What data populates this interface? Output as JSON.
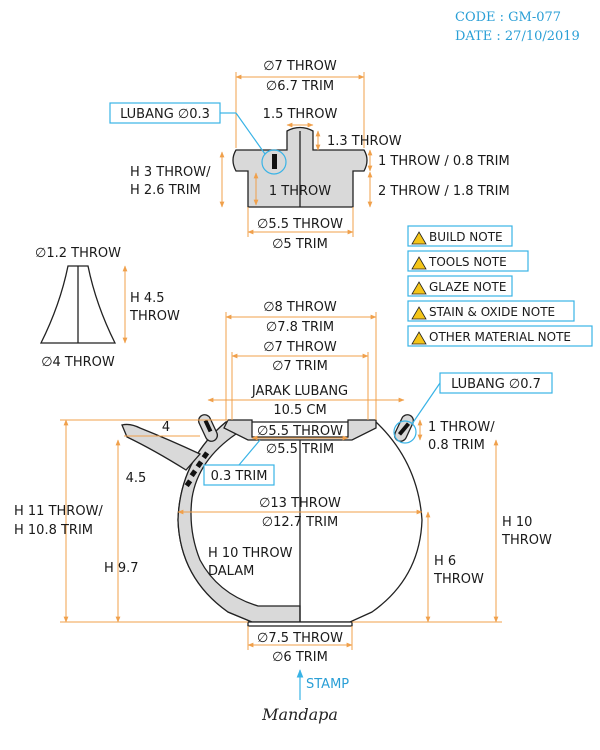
{
  "header": {
    "code": "CODE : GM-077",
    "date": "DATE : 27/10/2019"
  },
  "lid": {
    "dia_throw": "∅7 THROW",
    "dia_trim": "∅6.7 TRIM",
    "hole_label": "LUBANG ∅0.3",
    "knob_width": "1.5 THROW",
    "knob_height": "1.3 THROW",
    "height_1": "H 3 THROW/",
    "height_2": "H 2.6 TRIM",
    "flange": "1 THROW / 0.8 TRIM",
    "inner": "1 THROW",
    "wall": "2 THROW / 1.8 TRIM",
    "bottom_throw": "∅5.5 THROW",
    "bottom_trim": "∅5 TRIM"
  },
  "spout": {
    "top": "∅1.2 THROW",
    "height_1": "H 4.5",
    "height_2": "THROW",
    "bottom": "∅4 THROW"
  },
  "notes": [
    {
      "label": "BUILD NOTE",
      "icon": "warning-icon"
    },
    {
      "label": "TOOLS NOTE",
      "icon": "warning-icon"
    },
    {
      "label": "GLAZE NOTE",
      "icon": "warning-icon"
    },
    {
      "label": "STAIN & OXIDE NOTE",
      "icon": "warning-icon"
    },
    {
      "label": "OTHER MATERIAL NOTE",
      "icon": "warning-icon"
    }
  ],
  "pot": {
    "top_throw": "∅8 THROW",
    "top_trim": "∅7.8 TRIM",
    "gallery_throw": "∅7 THROW",
    "gallery_trim": "∅7 TRIM",
    "distance_1": "JARAK LUBANG",
    "distance_2": "10.5 CM",
    "hole_label": "LUBANG ∅0.7",
    "rim_1": "1 THROW/",
    "rim_2": "0.8 TRIM",
    "opening_throw": "∅5.5 THROW",
    "opening_trim": "∅5.5 TRIM",
    "spout_4": "4",
    "spout_45": "4.5",
    "strainer_trim": "0.3 TRIM",
    "height_total_1": "H 11 THROW/",
    "height_total_2": "H 10.8 TRIM",
    "belly_throw": "∅13 THROW",
    "belly_trim": "∅12.7 TRIM",
    "inner_1": "H 10 THROW",
    "inner_2": "DALAM",
    "h97": "H 9.7",
    "h6_1": "H 6",
    "h6_2": "THROW",
    "h10_1": "H 10",
    "h10_2": "THROW",
    "foot_throw": "∅7.5 THROW",
    "foot_trim": "∅6 TRIM"
  },
  "stamp": "STAMP",
  "logo": "Mandapa",
  "colors": {
    "accent": "#2a9fd6",
    "dimension": "#f0a04b",
    "body": "#d9d9d9"
  }
}
